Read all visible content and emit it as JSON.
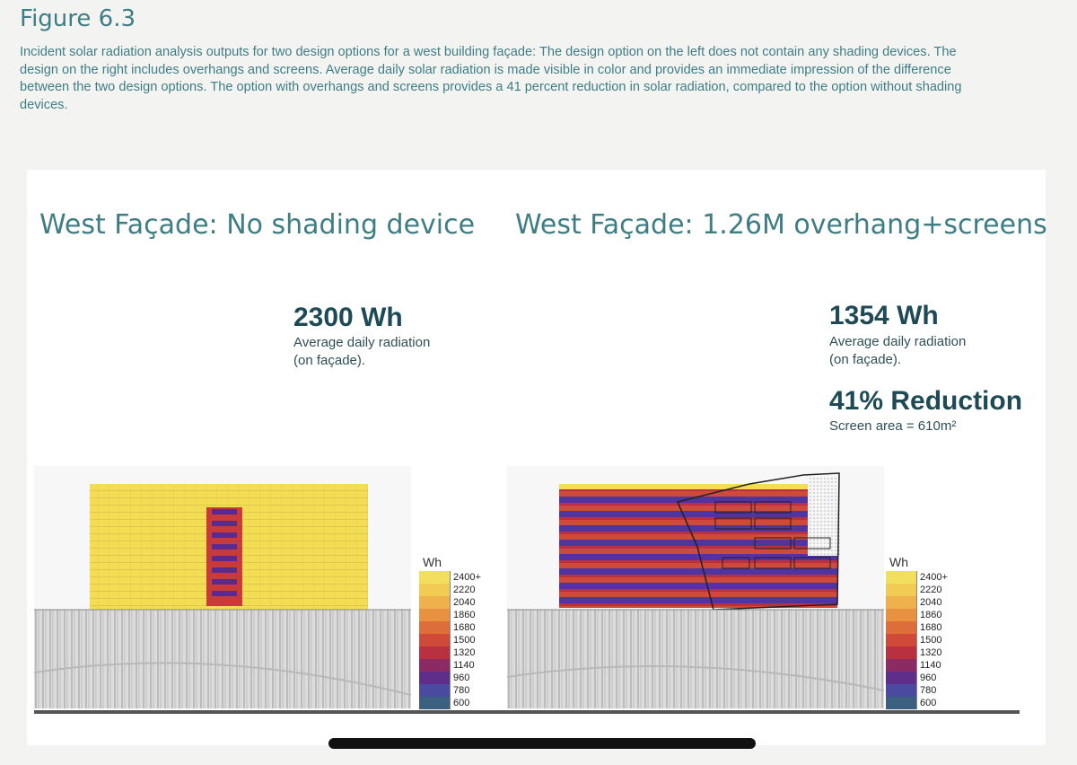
{
  "figure_title": "Figure 6.3",
  "caption": "Incident solar radiation analysis outputs for two design options for a west building façade: The design option on the left does not contain any shading devices. The design on the right includes overhangs and screens. Average daily solar radiation is made visible in color and provides an immediate impression of the difference between the two design options. The option with overhangs and screens provides a 41 percent reduction in solar radiation, compared to the option without shading devices.",
  "left": {
    "title": "West Façade: No shading device",
    "value": "2300 Wh",
    "line1": "Average daily radiation",
    "line2": "(on façade)."
  },
  "right": {
    "title": "West Façade: 1.26M overhang+screens",
    "value": "1354 Wh",
    "line1": "Average daily radiation",
    "line2": "(on façade).",
    "reduction": "41% Reduction",
    "screen_area": "Screen area = 610m²"
  },
  "legend": {
    "unit": "Wh",
    "items": [
      {
        "label": "2400+",
        "color": "#f3df5e"
      },
      {
        "label": "2220",
        "color": "#f2cb55"
      },
      {
        "label": "2040",
        "color": "#eeb14b"
      },
      {
        "label": "1860",
        "color": "#e79141"
      },
      {
        "label": "1680",
        "color": "#dd6d3a"
      },
      {
        "label": "1500",
        "color": "#cf4a38"
      },
      {
        "label": "1320",
        "color": "#b93041"
      },
      {
        "label": "1140",
        "color": "#8c2a63"
      },
      {
        "label": "960",
        "color": "#5f2e8a"
      },
      {
        "label": "780",
        "color": "#4a4aa0"
      },
      {
        "label": "600",
        "color": "#3b6080"
      }
    ]
  }
}
